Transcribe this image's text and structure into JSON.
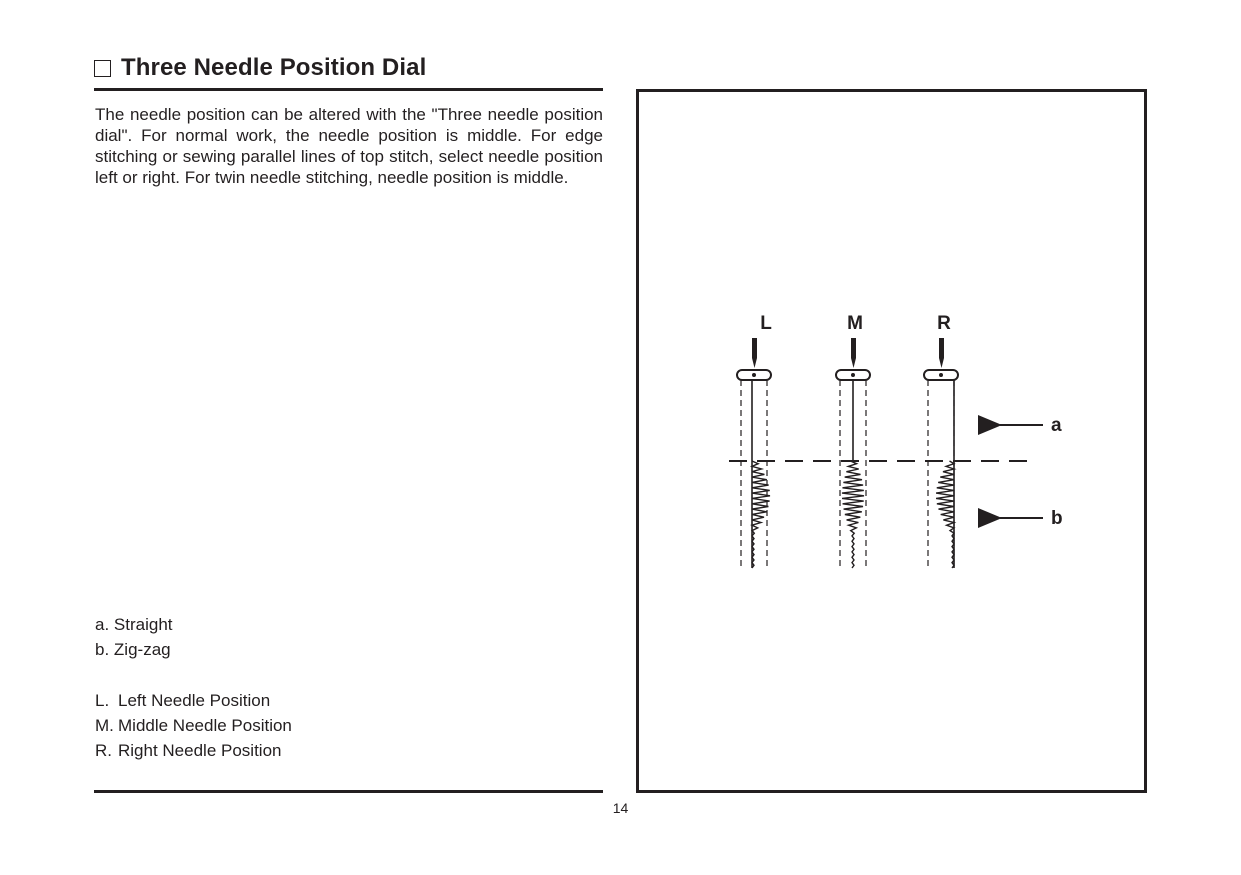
{
  "section": {
    "title": "Three Needle Position Dial"
  },
  "description": "The needle position can be altered with the \"Three needle position dial\". For normal work, the needle position is middle. For edge stitching or sewing parallel lines of top stitch, select needle position left or right. For twin needle stitching, needle position is middle.",
  "legend_stitches": [
    {
      "key": "a.",
      "label": "Straight"
    },
    {
      "key": "b.",
      "label": "Zig-zag"
    }
  ],
  "legend_positions": [
    {
      "key": "L.",
      "label": "Left Needle Position"
    },
    {
      "key": "M.",
      "label": "Middle Needle Position"
    },
    {
      "key": "R.",
      "label": "Right Needle Position"
    }
  ],
  "figure": {
    "needle_labels": [
      "L",
      "M",
      "R"
    ],
    "arrow_labels": {
      "a": "a",
      "b": "b"
    }
  },
  "page_number": "14"
}
